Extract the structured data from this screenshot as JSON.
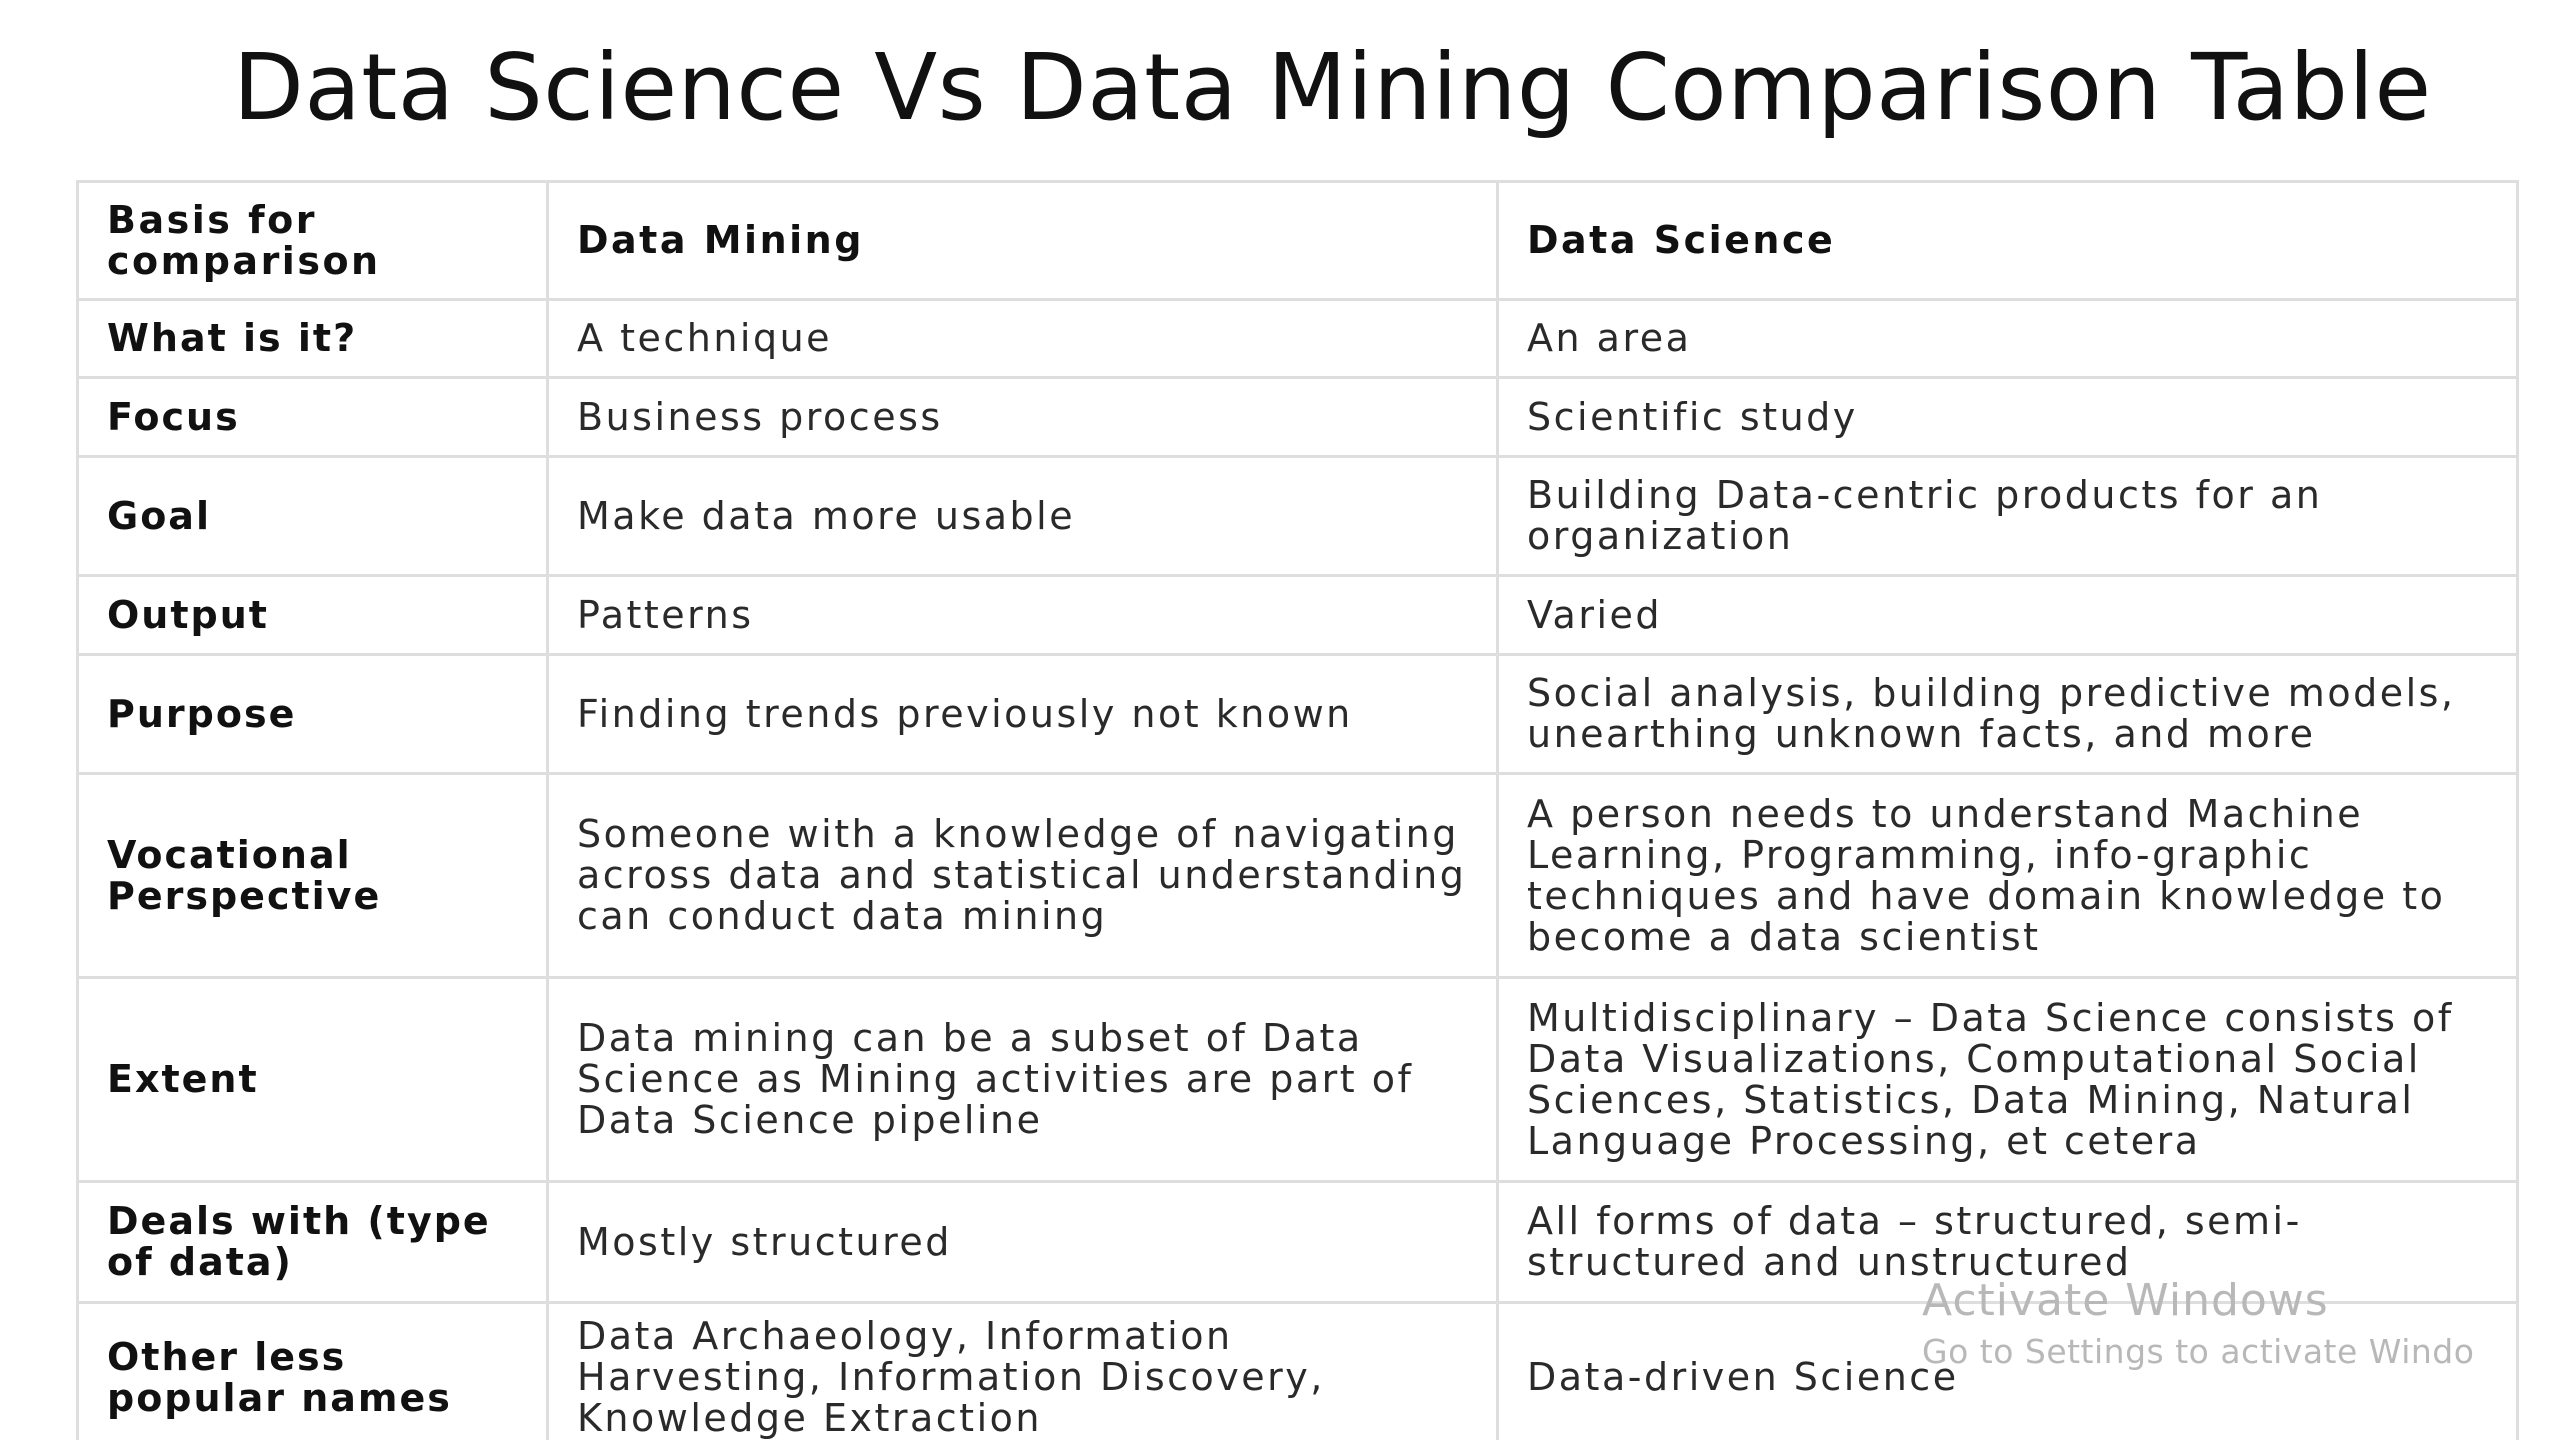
{
  "slide": {
    "title": "Data Science Vs Data Mining Comparison Table"
  },
  "table": {
    "header": {
      "basis": "Basis for comparison",
      "data_mining": "Data Mining",
      "data_science": "Data Science"
    },
    "rows": [
      {
        "label": "What is it?",
        "data_mining": "A technique",
        "data_science": "An area"
      },
      {
        "label": "Focus",
        "data_mining": "Business process",
        "data_science": "Scientific study"
      },
      {
        "label": "Goal",
        "data_mining": "Make data more usable",
        "data_science": "Building Data-centric products for an organization"
      },
      {
        "label": "Output",
        "data_mining": "Patterns",
        "data_science": "Varied"
      },
      {
        "label": "Purpose",
        "data_mining": "Finding trends previously not known",
        "data_science": "Social analysis, building predictive models, unearthing unknown facts, and more"
      },
      {
        "label": "Vocational Perspective",
        "data_mining": "Someone with a knowledge of navigating across data and statistical understanding can conduct data mining",
        "data_science": "A person needs to understand Machine Learning, Programming, info-graphic techniques and have domain knowledge to become a data scientist"
      },
      {
        "label": "Extent",
        "data_mining": "Data mining can be a subset of Data Science as Mining activities are part of Data Science pipeline",
        "data_science": "Multidisciplinary –  Data Science consists of Data Visualizations, Computational Social Sciences, Statistics, Data Mining, Natural Language Processing, et cetera"
      },
      {
        "label": "Deals with (type of data)",
        "data_mining": "Mostly structured",
        "data_science": "All forms of data – structured, semi-structured and unstructured"
      },
      {
        "label": "Other less popular names",
        "data_mining": "Data Archaeology, Information Harvesting, Information Discovery, Knowledge Extraction",
        "data_science": "Data-driven Science"
      }
    ]
  },
  "watermark": {
    "title": "Activate Windows",
    "subtitle": "Go to Settings to activate Windo"
  }
}
